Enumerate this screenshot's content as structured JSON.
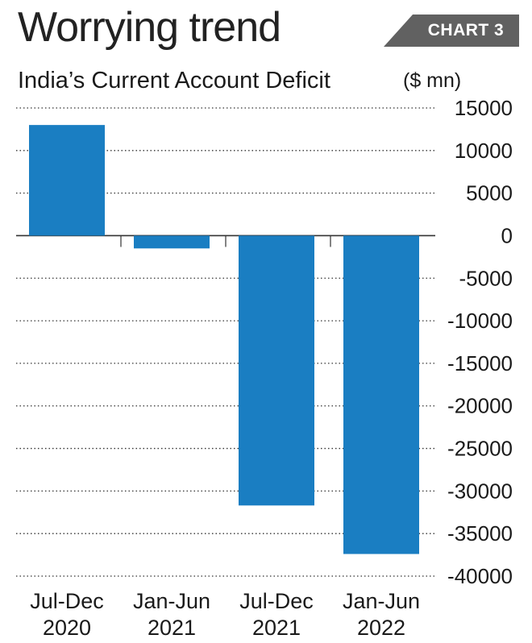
{
  "header": {
    "title": "Worrying trend",
    "subtitle": "India’s Current Account Deficit",
    "badge": "CHART 3",
    "unit": "($ mn)"
  },
  "colors": {
    "bar": "#1a7ec2",
    "badge": "#616161",
    "grid": "#333333",
    "text": "#1a1a1a"
  },
  "chart_data": {
    "type": "bar",
    "categories": [
      [
        "Jul-Dec",
        "2020"
      ],
      [
        "Jan-Jun",
        "2021"
      ],
      [
        "Jul-Dec",
        "2021"
      ],
      [
        "Jan-Jun",
        "2022"
      ]
    ],
    "values": [
      13000,
      -1500,
      -31700,
      -37400
    ],
    "title": "Worrying trend",
    "subtitle": "India’s Current Account Deficit",
    "ylabel": "($ mn)",
    "ylim": [
      -40000,
      15000
    ],
    "yticks": [
      15000,
      10000,
      5000,
      0,
      -5000,
      -10000,
      -15000,
      -20000,
      -25000,
      -30000,
      -35000,
      -40000
    ],
    "ytick_labels": [
      "15000",
      "10000",
      "5000",
      "0",
      "-5000",
      "-10000",
      "-15000",
      "-20000",
      "-25000",
      "-30000",
      "-35000",
      "-40000"
    ],
    "grid": true,
    "grid_style": "dotted",
    "y_axis_side": "right",
    "legend": "none"
  }
}
